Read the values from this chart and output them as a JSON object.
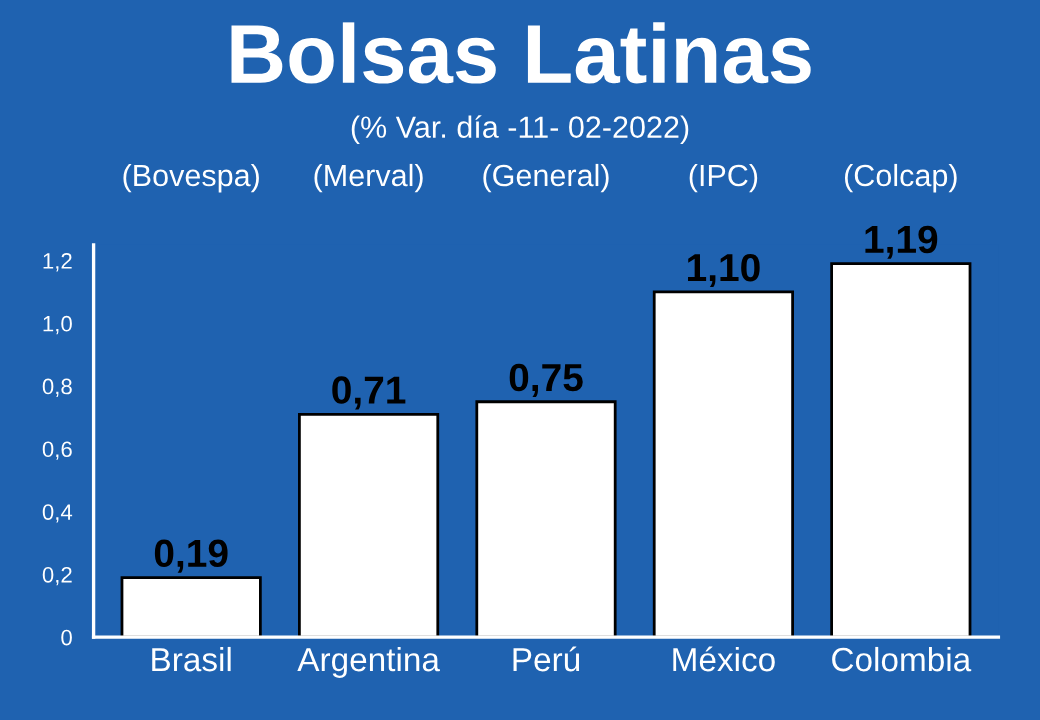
{
  "chart_data": {
    "type": "bar",
    "title": "Bolsas Latinas",
    "subtitle": "(% Var. día -11- 02-2022)",
    "categories": [
      "Brasil",
      "Argentina",
      "Perú",
      "México",
      "Colombia"
    ],
    "values": [
      0.19,
      0.71,
      0.75,
      1.1,
      1.19
    ],
    "value_labels": [
      "0,19",
      "0,71",
      "0,75",
      "1,10",
      "1,19"
    ],
    "color": "#ffffff",
    "ylim": [
      0,
      1.25
    ],
    "yticks": [
      {
        "value": 0,
        "label": "0"
      },
      {
        "value": 0.2,
        "label": "0,2"
      },
      {
        "value": 0.4,
        "label": "0,4"
      },
      {
        "value": 0.6,
        "label": "0,6"
      },
      {
        "value": 0.8,
        "label": "0,8"
      },
      {
        "value": 1.0,
        "label": "1,0"
      },
      {
        "value": 1.2,
        "label": "1,2"
      }
    ],
    "annotations": [
      "(Bovespa)",
      "(Merval)",
      "(General)",
      "(IPC)",
      "(Colcap)"
    ],
    "grid": false,
    "legend": false
  }
}
